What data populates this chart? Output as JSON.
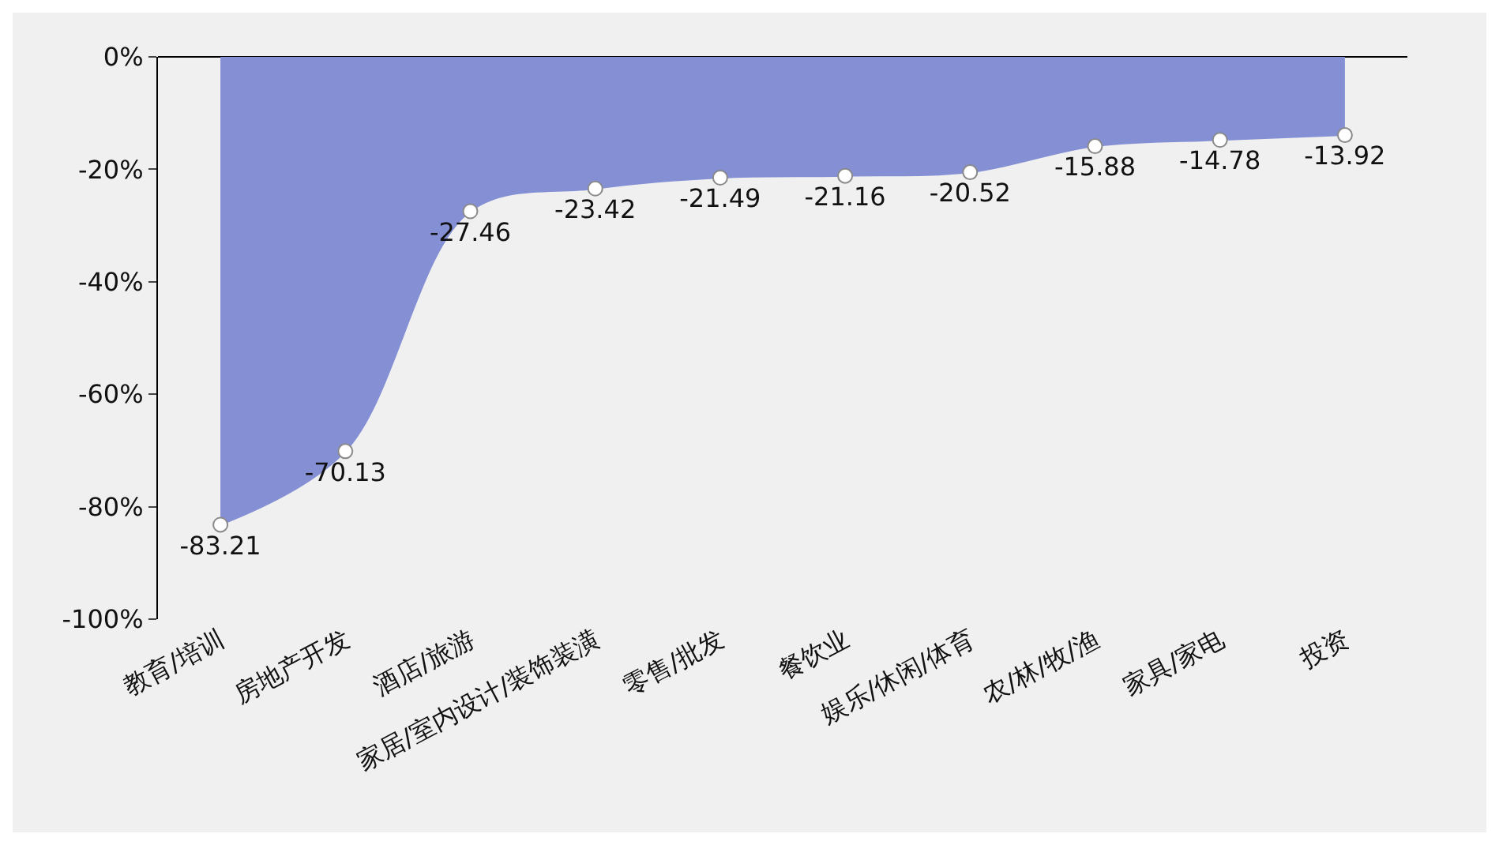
{
  "chart_data": {
    "type": "area",
    "categories": [
      "教育/培训",
      "房地产开发",
      "酒店/旅游",
      "家居/室内设计/装饰装潢",
      "零售/批发",
      "餐饮业",
      "娱乐/休闲/体育",
      "农/林/牧/渔",
      "家具/家电",
      "投资"
    ],
    "values": [
      -83.21,
      -70.13,
      -27.46,
      -23.42,
      -21.49,
      -21.16,
      -20.52,
      -15.88,
      -14.78,
      -13.92
    ],
    "color": "#8590d4",
    "data_labels": true,
    "marker": "circle",
    "grid": false,
    "ylim": [
      -100,
      0
    ],
    "yticks": [
      {
        "value": 0,
        "label": "0%"
      },
      {
        "value": -20,
        "label": "-20%"
      },
      {
        "value": -40,
        "label": "-40%"
      },
      {
        "value": -60,
        "label": "-60%"
      },
      {
        "value": -80,
        "label": "-80%"
      },
      {
        "value": -100,
        "label": "-100%"
      }
    ]
  }
}
